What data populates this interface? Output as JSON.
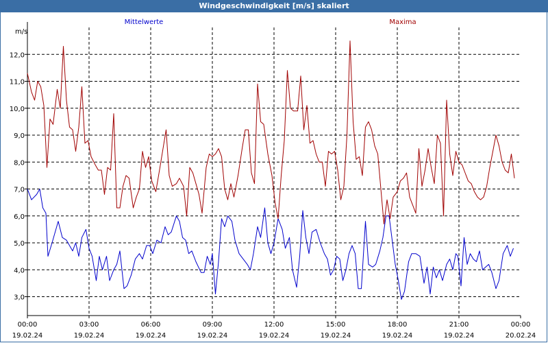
{
  "window": {
    "title": "Windgeschwindigkeit [m/s] skaliert"
  },
  "chart_data": {
    "type": "line",
    "title": "Windgeschwindigkeit [m/s] skaliert",
    "ylabel": "m/s",
    "ylim": [
      2.3,
      13.0
    ],
    "yticks": [
      "3,0",
      "4,0",
      "5,0",
      "6,0",
      "7,0",
      "8,0",
      "9,0",
      "10,0",
      "11,0",
      "12,0"
    ],
    "xlim": [
      0,
      24
    ],
    "xticks": [
      {
        "time": "00:00",
        "date": "19.02.24"
      },
      {
        "time": "03:00",
        "date": "19.02.24"
      },
      {
        "time": "06:00",
        "date": "19.02.24"
      },
      {
        "time": "09:00",
        "date": "19.02.24"
      },
      {
        "time": "12:00",
        "date": "19.02.24"
      },
      {
        "time": "15:00",
        "date": "19.02.24"
      },
      {
        "time": "18:00",
        "date": "19.02.24"
      },
      {
        "time": "21:00",
        "date": "19.02.24"
      },
      {
        "time": "00:00",
        "date": "20.02.24"
      }
    ],
    "grid": true,
    "series": [
      {
        "name": "Mittelwerte",
        "color": "#0000cc",
        "points": [
          [
            0.0,
            7.0
          ],
          [
            0.2,
            6.6
          ],
          [
            0.45,
            6.8
          ],
          [
            0.6,
            7.0
          ],
          [
            0.75,
            6.3
          ],
          [
            0.9,
            6.1
          ],
          [
            1.0,
            4.5
          ],
          [
            1.2,
            5.0
          ],
          [
            1.5,
            5.8
          ],
          [
            1.7,
            5.2
          ],
          [
            1.9,
            5.1
          ],
          [
            2.2,
            4.7
          ],
          [
            2.35,
            5.0
          ],
          [
            2.5,
            4.5
          ],
          [
            2.65,
            5.2
          ],
          [
            2.85,
            5.5
          ],
          [
            3.0,
            4.8
          ],
          [
            3.15,
            4.5
          ],
          [
            3.35,
            3.6
          ],
          [
            3.5,
            4.5
          ],
          [
            3.65,
            4.0
          ],
          [
            3.85,
            4.5
          ],
          [
            4.0,
            3.6
          ],
          [
            4.2,
            4.0
          ],
          [
            4.35,
            4.2
          ],
          [
            4.5,
            4.7
          ],
          [
            4.7,
            3.3
          ],
          [
            4.85,
            3.4
          ],
          [
            5.05,
            3.8
          ],
          [
            5.25,
            4.4
          ],
          [
            5.45,
            4.6
          ],
          [
            5.6,
            4.4
          ],
          [
            5.8,
            4.9
          ],
          [
            5.95,
            4.9
          ],
          [
            6.1,
            4.6
          ],
          [
            6.3,
            5.1
          ],
          [
            6.5,
            5.0
          ],
          [
            6.7,
            5.6
          ],
          [
            6.85,
            5.3
          ],
          [
            7.0,
            5.4
          ],
          [
            7.25,
            6.0
          ],
          [
            7.4,
            5.8
          ],
          [
            7.55,
            5.2
          ],
          [
            7.7,
            5.1
          ],
          [
            7.85,
            4.6
          ],
          [
            8.0,
            4.7
          ],
          [
            8.2,
            4.3
          ],
          [
            8.45,
            3.9
          ],
          [
            8.6,
            3.9
          ],
          [
            8.75,
            4.5
          ],
          [
            8.9,
            4.2
          ],
          [
            9.0,
            4.6
          ],
          [
            9.15,
            3.1
          ],
          [
            9.3,
            4.3
          ],
          [
            9.45,
            5.9
          ],
          [
            9.6,
            5.6
          ],
          [
            9.75,
            6.0
          ],
          [
            9.95,
            5.8
          ],
          [
            10.1,
            5.1
          ],
          [
            10.3,
            4.6
          ],
          [
            10.5,
            4.4
          ],
          [
            10.7,
            4.2
          ],
          [
            10.85,
            4.0
          ],
          [
            11.0,
            4.6
          ],
          [
            11.2,
            5.6
          ],
          [
            11.35,
            5.2
          ],
          [
            11.55,
            6.3
          ],
          [
            11.7,
            5.0
          ],
          [
            11.85,
            4.6
          ],
          [
            12.0,
            5.0
          ],
          [
            12.2,
            5.9
          ],
          [
            12.4,
            5.5
          ],
          [
            12.55,
            4.8
          ],
          [
            12.75,
            5.2
          ],
          [
            12.9,
            4.0
          ],
          [
            13.1,
            3.35
          ],
          [
            13.25,
            4.5
          ],
          [
            13.4,
            6.2
          ],
          [
            13.55,
            5.2
          ],
          [
            13.7,
            4.6
          ],
          [
            13.85,
            5.4
          ],
          [
            14.05,
            5.5
          ],
          [
            14.25,
            5.0
          ],
          [
            14.45,
            4.6
          ],
          [
            14.6,
            4.4
          ],
          [
            14.75,
            3.8
          ],
          [
            14.9,
            4.0
          ],
          [
            15.05,
            4.5
          ],
          [
            15.2,
            4.4
          ],
          [
            15.35,
            3.6
          ],
          [
            15.5,
            4.0
          ],
          [
            15.65,
            4.6
          ],
          [
            15.8,
            4.9
          ],
          [
            15.95,
            4.6
          ],
          [
            16.1,
            3.3
          ],
          [
            16.25,
            3.3
          ],
          [
            16.45,
            5.8
          ],
          [
            16.6,
            4.2
          ],
          [
            16.8,
            4.1
          ],
          [
            16.95,
            4.2
          ],
          [
            17.15,
            4.7
          ],
          [
            17.3,
            5.2
          ],
          [
            17.45,
            6.0
          ],
          [
            17.6,
            6.0
          ],
          [
            17.75,
            5.1
          ],
          [
            17.9,
            4.2
          ],
          [
            18.05,
            3.6
          ],
          [
            18.2,
            2.9
          ],
          [
            18.35,
            3.2
          ],
          [
            18.55,
            4.3
          ],
          [
            18.7,
            4.6
          ],
          [
            18.9,
            4.6
          ],
          [
            19.1,
            4.5
          ],
          [
            19.3,
            3.5
          ],
          [
            19.45,
            4.1
          ],
          [
            19.6,
            3.1
          ],
          [
            19.75,
            4.1
          ],
          [
            19.9,
            3.7
          ],
          [
            20.05,
            4.0
          ],
          [
            20.2,
            3.6
          ],
          [
            20.4,
            4.2
          ],
          [
            20.55,
            4.4
          ],
          [
            20.7,
            4.0
          ],
          [
            20.85,
            4.6
          ],
          [
            20.95,
            4.5
          ],
          [
            21.1,
            3.4
          ],
          [
            21.25,
            5.2
          ],
          [
            21.4,
            4.2
          ],
          [
            21.55,
            4.6
          ],
          [
            21.7,
            4.4
          ],
          [
            21.85,
            4.3
          ],
          [
            22.0,
            4.7
          ],
          [
            22.15,
            4.0
          ],
          [
            22.3,
            4.1
          ],
          [
            22.45,
            4.2
          ],
          [
            22.6,
            3.9
          ],
          [
            22.8,
            3.3
          ],
          [
            22.95,
            3.6
          ],
          [
            23.15,
            4.6
          ],
          [
            23.35,
            4.9
          ],
          [
            23.5,
            4.5
          ],
          [
            23.65,
            4.8
          ]
        ]
      },
      {
        "name": "Maxima",
        "color": "#a00000",
        "points": [
          [
            0.0,
            11.3
          ],
          [
            0.2,
            10.6
          ],
          [
            0.35,
            10.3
          ],
          [
            0.5,
            11.0
          ],
          [
            0.65,
            10.8
          ],
          [
            0.8,
            10.1
          ],
          [
            0.95,
            7.8
          ],
          [
            1.1,
            9.6
          ],
          [
            1.25,
            9.4
          ],
          [
            1.45,
            10.7
          ],
          [
            1.6,
            10.0
          ],
          [
            1.75,
            12.3
          ],
          [
            1.9,
            10.3
          ],
          [
            2.05,
            9.3
          ],
          [
            2.2,
            9.2
          ],
          [
            2.35,
            8.4
          ],
          [
            2.5,
            9.3
          ],
          [
            2.65,
            10.8
          ],
          [
            2.8,
            8.7
          ],
          [
            2.95,
            8.8
          ],
          [
            3.1,
            8.2
          ],
          [
            3.3,
            7.9
          ],
          [
            3.45,
            7.7
          ],
          [
            3.6,
            7.7
          ],
          [
            3.75,
            6.8
          ],
          [
            3.9,
            7.8
          ],
          [
            4.05,
            7.7
          ],
          [
            4.2,
            9.8
          ],
          [
            4.35,
            6.3
          ],
          [
            4.5,
            6.3
          ],
          [
            4.65,
            7.1
          ],
          [
            4.8,
            7.5
          ],
          [
            4.95,
            7.4
          ],
          [
            5.15,
            6.3
          ],
          [
            5.3,
            6.7
          ],
          [
            5.45,
            7.0
          ],
          [
            5.6,
            8.4
          ],
          [
            5.75,
            7.8
          ],
          [
            5.9,
            8.2
          ],
          [
            6.05,
            7.3
          ],
          [
            6.25,
            6.9
          ],
          [
            6.45,
            7.8
          ],
          [
            6.6,
            8.5
          ],
          [
            6.75,
            9.2
          ],
          [
            6.9,
            7.5
          ],
          [
            7.05,
            7.1
          ],
          [
            7.25,
            7.2
          ],
          [
            7.4,
            7.4
          ],
          [
            7.6,
            7.1
          ],
          [
            7.75,
            6.0
          ],
          [
            7.9,
            7.8
          ],
          [
            8.05,
            7.6
          ],
          [
            8.2,
            7.2
          ],
          [
            8.35,
            6.8
          ],
          [
            8.5,
            6.1
          ],
          [
            8.7,
            7.8
          ],
          [
            8.85,
            8.3
          ],
          [
            9.0,
            8.2
          ],
          [
            9.15,
            8.3
          ],
          [
            9.3,
            8.5
          ],
          [
            9.45,
            8.2
          ],
          [
            9.6,
            7.0
          ],
          [
            9.75,
            6.6
          ],
          [
            9.9,
            7.2
          ],
          [
            10.05,
            6.7
          ],
          [
            10.25,
            7.5
          ],
          [
            10.45,
            8.5
          ],
          [
            10.6,
            9.2
          ],
          [
            10.75,
            9.2
          ],
          [
            10.9,
            7.6
          ],
          [
            11.05,
            7.2
          ],
          [
            11.2,
            10.9
          ],
          [
            11.35,
            9.5
          ],
          [
            11.5,
            9.4
          ],
          [
            11.7,
            8.3
          ],
          [
            11.9,
            7.5
          ],
          [
            12.05,
            6.5
          ],
          [
            12.2,
            5.9
          ],
          [
            12.35,
            7.5
          ],
          [
            12.5,
            8.8
          ],
          [
            12.65,
            11.4
          ],
          [
            12.8,
            10.0
          ],
          [
            12.95,
            9.9
          ],
          [
            13.15,
            9.9
          ],
          [
            13.3,
            11.2
          ],
          [
            13.45,
            9.2
          ],
          [
            13.6,
            10.1
          ],
          [
            13.75,
            8.7
          ],
          [
            13.9,
            8.8
          ],
          [
            14.05,
            8.3
          ],
          [
            14.2,
            8.0
          ],
          [
            14.35,
            8.0
          ],
          [
            14.5,
            7.1
          ],
          [
            14.65,
            8.4
          ],
          [
            14.8,
            8.3
          ],
          [
            14.95,
            8.4
          ],
          [
            15.1,
            7.7
          ],
          [
            15.25,
            6.6
          ],
          [
            15.4,
            7.1
          ],
          [
            15.55,
            9.0
          ],
          [
            15.7,
            12.5
          ],
          [
            15.85,
            9.5
          ],
          [
            16.0,
            8.1
          ],
          [
            16.15,
            8.2
          ],
          [
            16.3,
            7.5
          ],
          [
            16.45,
            9.3
          ],
          [
            16.6,
            9.5
          ],
          [
            16.75,
            9.2
          ],
          [
            16.9,
            8.6
          ],
          [
            17.05,
            8.3
          ],
          [
            17.2,
            7.0
          ],
          [
            17.35,
            5.7
          ],
          [
            17.5,
            6.6
          ],
          [
            17.65,
            5.9
          ],
          [
            17.8,
            6.7
          ],
          [
            18.0,
            6.9
          ],
          [
            18.15,
            7.3
          ],
          [
            18.3,
            7.4
          ],
          [
            18.45,
            7.6
          ],
          [
            18.6,
            6.7
          ],
          [
            18.75,
            6.4
          ],
          [
            18.9,
            6.1
          ],
          [
            19.05,
            8.5
          ],
          [
            19.2,
            7.1
          ],
          [
            19.35,
            7.7
          ],
          [
            19.5,
            8.5
          ],
          [
            19.65,
            7.8
          ],
          [
            19.8,
            7.2
          ],
          [
            19.95,
            9.0
          ],
          [
            20.1,
            8.7
          ],
          [
            20.25,
            6.0
          ],
          [
            20.4,
            10.3
          ],
          [
            20.55,
            8.3
          ],
          [
            20.7,
            7.5
          ],
          [
            20.85,
            8.4
          ],
          [
            21.0,
            8.0
          ],
          [
            21.15,
            7.9
          ],
          [
            21.3,
            7.6
          ],
          [
            21.45,
            7.3
          ],
          [
            21.6,
            7.2
          ],
          [
            21.75,
            6.9
          ],
          [
            21.9,
            6.7
          ],
          [
            22.05,
            6.6
          ],
          [
            22.2,
            6.7
          ],
          [
            22.35,
            7.1
          ],
          [
            22.5,
            7.8
          ],
          [
            22.65,
            8.4
          ],
          [
            22.8,
            9.0
          ],
          [
            22.95,
            8.6
          ],
          [
            23.1,
            8.0
          ],
          [
            23.25,
            7.7
          ],
          [
            23.4,
            7.6
          ],
          [
            23.55,
            8.3
          ],
          [
            23.7,
            7.4
          ]
        ]
      }
    ]
  }
}
